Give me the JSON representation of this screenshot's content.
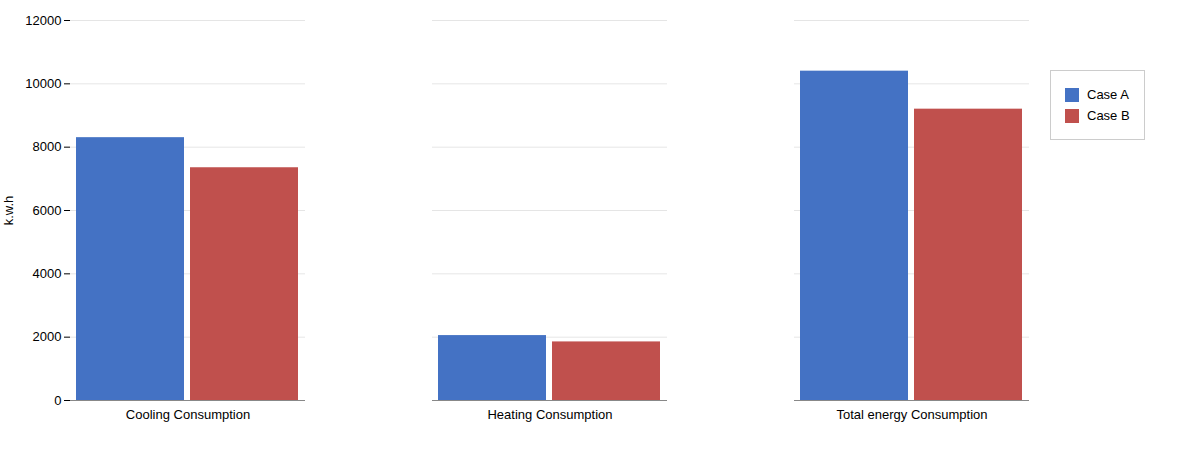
{
  "chart_data": {
    "type": "bar",
    "categories": [
      "Cooling Consumption",
      "Heating Consumption",
      "Total energy Consumption"
    ],
    "series": [
      {
        "name": "Case A",
        "color": "#4472C4",
        "values": [
          8300,
          2050,
          10400
        ]
      },
      {
        "name": "Case B",
        "color": "#C0504D",
        "values": [
          7350,
          1850,
          9200
        ]
      }
    ],
    "ylabel": "k.w.h",
    "ylim": [
      0,
      12000
    ],
    "yticks": [
      0,
      2000,
      4000,
      6000,
      8000,
      10000,
      12000
    ],
    "grid": true,
    "legend": "right"
  }
}
